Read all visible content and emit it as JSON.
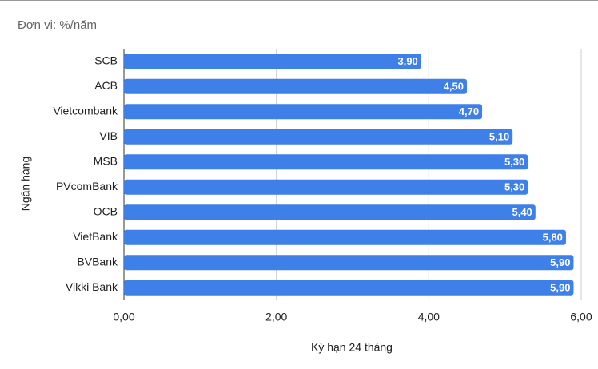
{
  "chart_data": {
    "type": "bar",
    "orientation": "horizontal",
    "title": "Đơn vị: %/năm",
    "x_label": "Kỳ hạn 24 tháng",
    "y_label": "Ngân hàng",
    "categories": [
      "SCB",
      "ACB",
      "Vietcombank",
      "VIB",
      "MSB",
      "PVcomBank",
      "OCB",
      "VietBank",
      "BVBank",
      "Vikki Bank"
    ],
    "values": [
      3.9,
      4.5,
      4.7,
      5.1,
      5.3,
      5.3,
      5.4,
      5.8,
      5.9,
      5.9
    ],
    "value_labels": [
      "3,90",
      "4,50",
      "4,70",
      "5,10",
      "5,30",
      "5,30",
      "5,40",
      "5,80",
      "5,90",
      "5,90"
    ],
    "color": "#3f7fe8",
    "xlim": [
      0,
      6
    ],
    "xticks": [
      {
        "value": 0,
        "label": "0,00"
      },
      {
        "value": 2,
        "label": "2,00"
      },
      {
        "value": 4,
        "label": "4,00"
      },
      {
        "value": 6,
        "label": "6,00"
      }
    ],
    "grid": true
  }
}
